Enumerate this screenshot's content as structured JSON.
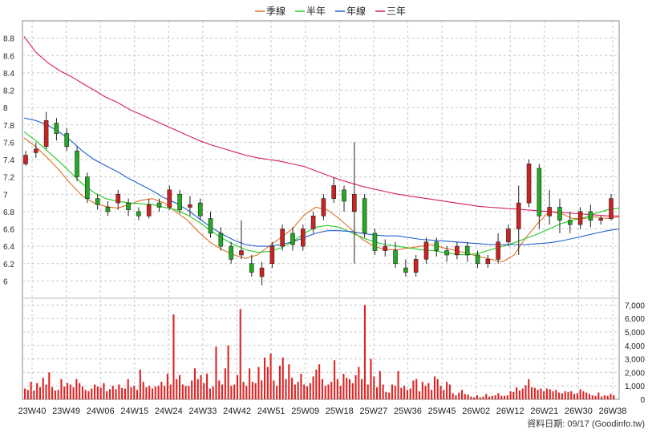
{
  "chart_data": {
    "type": "line",
    "title": "",
    "legend": {
      "placement": "top-center",
      "items": [
        {
          "label": "季線",
          "color": "#e07020"
        },
        {
          "label": "半年",
          "color": "#22cc22"
        },
        {
          "label": "年線",
          "color": "#2060d0"
        },
        {
          "label": "三年",
          "color": "#d81b60"
        }
      ]
    },
    "x_ticks": [
      "23W40",
      "23W49",
      "24W06",
      "24W15",
      "24W24",
      "24W33",
      "24W42",
      "24W51",
      "25W09",
      "25W18",
      "25W27",
      "25W36",
      "25W45",
      "26W02",
      "26W12",
      "26W21",
      "26W30",
      "26W38"
    ],
    "price_axis": {
      "ylim": [
        5.8,
        9.0
      ],
      "ticks": [
        6,
        6.2,
        6.4,
        6.6,
        6.8,
        7,
        7.2,
        7.4,
        7.6,
        7.8,
        8,
        8.2,
        8.4,
        8.6,
        8.8
      ],
      "tick_labels": [
        "6",
        "6.2",
        "6.4",
        "6.6",
        "6.8",
        "7",
        "7.2",
        "7.4",
        "7.6",
        "7.8",
        "8",
        "8.2",
        "8.4",
        "8.6",
        "8.8"
      ]
    },
    "volume_axis": {
      "ylim": [
        0,
        7500
      ],
      "ticks": [
        0,
        1000,
        2000,
        3000,
        4000,
        5000,
        6000,
        7000
      ],
      "tick_labels": [
        "0",
        "1,000",
        "2,000",
        "3,000",
        "4,000",
        "5,000",
        "6,000",
        "7,000"
      ]
    },
    "grid": true,
    "candle_colors": {
      "up": "#cc2222",
      "down": "#22aa22"
    },
    "volume_color": "#dd2222",
    "series": [
      {
        "name": "季線",
        "color": "#e07020",
        "values": [
          7.65,
          7.55,
          7.42,
          7.28,
          7.12,
          6.98,
          6.9,
          6.86,
          6.84,
          6.88,
          6.93,
          6.95,
          6.9,
          6.8,
          6.7,
          6.56,
          6.44,
          6.36,
          6.3,
          6.26,
          6.3,
          6.4,
          6.5,
          6.6,
          6.76,
          6.85,
          6.82,
          6.72,
          6.6,
          6.48,
          6.4,
          6.36,
          6.36,
          6.38,
          6.4,
          6.42,
          6.38,
          6.35,
          6.32,
          6.28,
          6.25,
          6.22,
          6.3,
          6.5,
          6.66,
          6.8,
          6.78,
          6.72,
          6.72,
          6.74,
          6.72,
          6.74
        ]
      },
      {
        "name": "半年",
        "color": "#22cc22",
        "values": [
          7.72,
          7.62,
          7.5,
          7.38,
          7.25,
          7.12,
          7.02,
          6.95,
          6.92,
          6.9,
          6.89,
          6.88,
          6.85,
          6.82,
          6.76,
          6.68,
          6.58,
          6.49,
          6.42,
          6.36,
          6.33,
          6.34,
          6.38,
          6.45,
          6.55,
          6.62,
          6.64,
          6.62,
          6.56,
          6.5,
          6.45,
          6.42,
          6.4,
          6.38,
          6.36,
          6.35,
          6.33,
          6.31,
          6.3,
          6.32,
          6.36,
          6.4,
          6.44,
          6.49,
          6.54,
          6.6,
          6.66,
          6.7,
          6.73,
          6.78,
          6.82,
          6.84
        ]
      },
      {
        "name": "年線",
        "color": "#2060d0",
        "values": [
          7.88,
          7.85,
          7.8,
          7.72,
          7.62,
          7.5,
          7.4,
          7.33,
          7.26,
          7.18,
          7.11,
          7.04,
          6.96,
          6.9,
          6.82,
          6.72,
          6.62,
          6.54,
          6.47,
          6.42,
          6.4,
          6.4,
          6.42,
          6.45,
          6.5,
          6.55,
          6.58,
          6.58,
          6.57,
          6.55,
          6.53,
          6.52,
          6.52,
          6.5,
          6.48,
          6.47,
          6.46,
          6.45,
          6.44,
          6.43,
          6.42,
          6.42,
          6.42,
          6.42,
          6.43,
          6.44,
          6.46,
          6.49,
          6.52,
          6.55,
          6.58,
          6.6
        ]
      },
      {
        "name": "三年",
        "color": "#d81b60",
        "values": [
          8.82,
          8.64,
          8.52,
          8.43,
          8.36,
          8.28,
          8.2,
          8.12,
          8.06,
          7.98,
          7.92,
          7.86,
          7.8,
          7.74,
          7.68,
          7.62,
          7.57,
          7.53,
          7.49,
          7.45,
          7.42,
          7.4,
          7.38,
          7.35,
          7.32,
          7.27,
          7.22,
          7.17,
          7.13,
          7.09,
          7.06,
          7.03,
          7.0,
          6.98,
          6.96,
          6.94,
          6.92,
          6.9,
          6.88,
          6.86,
          6.85,
          6.84,
          6.83,
          6.82,
          6.81,
          6.8,
          6.79,
          6.78,
          6.77,
          6.76,
          6.75,
          6.75
        ]
      },
      {
        "name": "",
        "type": "candlestick",
        "values": [
          [
            7.35,
            7.45,
            7.33,
            7.5
          ],
          [
            7.48,
            7.52,
            7.42,
            7.6
          ],
          [
            7.55,
            7.85,
            7.52,
            7.95
          ],
          [
            7.82,
            7.7,
            7.62,
            7.88
          ],
          [
            7.7,
            7.55,
            7.5,
            7.76
          ],
          [
            7.5,
            7.2,
            7.15,
            7.55
          ],
          [
            7.2,
            6.95,
            6.9,
            7.25
          ],
          [
            6.95,
            6.88,
            6.82,
            7.0
          ],
          [
            6.85,
            6.8,
            6.75,
            6.92
          ],
          [
            6.9,
            7.0,
            6.82,
            7.05
          ],
          [
            6.9,
            6.82,
            6.75,
            6.95
          ],
          [
            6.8,
            6.75,
            6.7,
            6.85
          ],
          [
            6.75,
            6.88,
            6.72,
            6.95
          ],
          [
            6.9,
            6.85,
            6.8,
            6.95
          ],
          [
            6.85,
            7.05,
            6.82,
            7.1
          ],
          [
            7.0,
            6.82,
            6.78,
            7.05
          ],
          [
            6.85,
            6.88,
            6.75,
            6.98
          ],
          [
            6.9,
            6.75,
            6.7,
            6.95
          ],
          [
            6.72,
            6.55,
            6.5,
            6.8
          ],
          [
            6.55,
            6.4,
            6.35,
            6.62
          ],
          [
            6.4,
            6.25,
            6.2,
            6.45
          ],
          [
            6.3,
            6.35,
            6.25,
            6.7
          ],
          [
            6.2,
            6.1,
            6.05,
            6.3
          ],
          [
            6.05,
            6.15,
            5.95,
            6.22
          ],
          [
            6.2,
            6.4,
            6.15,
            6.45
          ],
          [
            6.4,
            6.6,
            6.35,
            6.65
          ],
          [
            6.55,
            6.42,
            6.35,
            6.62
          ],
          [
            6.4,
            6.6,
            6.35,
            6.65
          ],
          [
            6.6,
            6.75,
            6.55,
            6.8
          ],
          [
            6.75,
            6.95,
            6.7,
            7.0
          ],
          [
            6.95,
            7.1,
            6.9,
            7.2
          ],
          [
            7.05,
            6.92,
            6.8,
            7.1
          ],
          [
            6.8,
            7.0,
            6.2,
            7.6
          ],
          [
            6.95,
            6.55,
            6.5,
            7.0
          ],
          [
            6.55,
            6.35,
            6.3,
            6.6
          ],
          [
            6.35,
            6.4,
            6.28,
            6.48
          ],
          [
            6.35,
            6.2,
            6.15,
            6.45
          ],
          [
            6.15,
            6.1,
            6.05,
            6.25
          ],
          [
            6.1,
            6.25,
            6.05,
            6.3
          ],
          [
            6.25,
            6.45,
            6.2,
            6.5
          ],
          [
            6.45,
            6.35,
            6.28,
            6.5
          ],
          [
            6.35,
            6.3,
            6.22,
            6.4
          ],
          [
            6.3,
            6.4,
            6.25,
            6.45
          ],
          [
            6.4,
            6.3,
            6.22,
            6.45
          ],
          [
            6.3,
            6.2,
            6.15,
            6.35
          ],
          [
            6.2,
            6.25,
            6.15,
            6.3
          ],
          [
            6.25,
            6.45,
            6.2,
            6.55
          ],
          [
            6.45,
            6.6,
            6.4,
            6.65
          ],
          [
            6.6,
            6.9,
            6.3,
            7.1
          ],
          [
            6.9,
            7.35,
            6.85,
            7.4
          ],
          [
            7.3,
            6.75,
            6.6,
            7.35
          ],
          [
            6.75,
            6.85,
            6.65,
            7.05
          ],
          [
            6.85,
            6.7,
            6.55,
            6.95
          ],
          [
            6.7,
            6.65,
            6.55,
            6.8
          ],
          [
            6.65,
            6.8,
            6.6,
            6.85
          ],
          [
            6.8,
            6.7,
            6.62,
            6.88
          ],
          [
            6.7,
            6.72,
            6.65,
            6.75
          ],
          [
            6.72,
            6.95,
            6.7,
            7.0
          ]
        ]
      }
    ],
    "volume": [
      800,
      700,
      1300,
      650,
      1200,
      900,
      1600,
      1100,
      2000,
      900,
      650,
      700,
      1500,
      950,
      1200,
      1100,
      900,
      1500,
      1200,
      950,
      700,
      600,
      800,
      1100,
      950,
      850,
      1200,
      600,
      750,
      1000,
      750,
      1100,
      850,
      800,
      1500,
      900,
      1000,
      700,
      2200,
      1300,
      900,
      1000,
      800,
      950,
      1000,
      1300,
      1000,
      1900,
      1100,
      6300,
      1500,
      1800,
      1100,
      1000,
      1000,
      1400,
      2300,
      1500,
      1800,
      1200,
      1900,
      800,
      950,
      3900,
      1400,
      1100,
      2300,
      4000,
      1000,
      1100,
      1800,
      6700,
      1300,
      1000,
      2300,
      1300,
      1200,
      2400,
      1400,
      3100,
      2400,
      3400,
      1400,
      1000,
      2500,
      3100,
      1500,
      2600,
      1600,
      1100,
      1300,
      1900,
      1100,
      950,
      1200,
      1700,
      2200,
      2600,
      1500,
      1000,
      1100,
      1300,
      2900,
      1500,
      1000,
      1900,
      1600,
      1500,
      1200,
      1800,
      2400,
      1500,
      7000,
      1100,
      3000,
      1700,
      900,
      2100,
      1100,
      550,
      500,
      1100,
      1000,
      2100,
      850,
      1000,
      700,
      800,
      1400,
      1500,
      600,
      1300,
      1000,
      1200,
      700,
      1700,
      1500,
      1000,
      700,
      1300,
      1100,
      450,
      300,
      500,
      700,
      400,
      350,
      200,
      150,
      300,
      150,
      200,
      400,
      200,
      250,
      300,
      450,
      250,
      250,
      300,
      600,
      550,
      900,
      650,
      800,
      1050,
      1500,
      900,
      850,
      700,
      800,
      600,
      800,
      750,
      600,
      700,
      500,
      450,
      600,
      550,
      600,
      400,
      450,
      750,
      600,
      500,
      400,
      300,
      250,
      500,
      200,
      300,
      250,
      400,
      300
    ]
  },
  "footer": {
    "source": "資料日期: 09/17  (Goodinfo.tw)"
  }
}
